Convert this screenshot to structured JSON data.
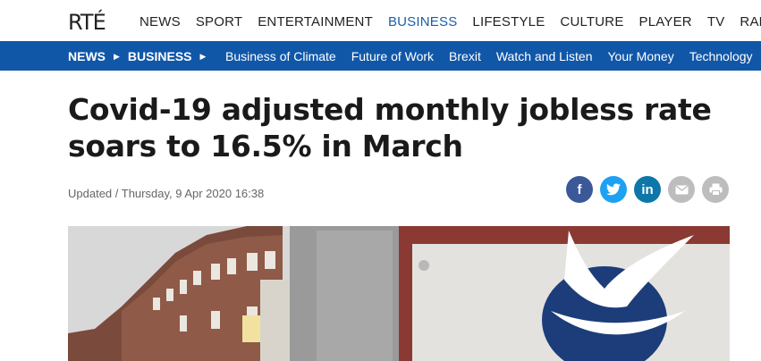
{
  "header": {
    "logo_text": "RTÉ",
    "nav_items": [
      "NEWS",
      "SPORT",
      "ENTERTAINMENT",
      "BUSINESS",
      "LIFESTYLE",
      "CULTURE",
      "PLAYER",
      "TV",
      "RADIO"
    ],
    "active_item": "BUSINESS"
  },
  "subnav": {
    "crumb_1": "NEWS",
    "crumb_2": "BUSINESS",
    "links": [
      "Business of Climate",
      "Future of Work",
      "Brexit",
      "Watch and Listen",
      "Your Money",
      "Technology"
    ]
  },
  "article": {
    "headline": "Covid-19 adjusted monthly jobless rate soars to 16.5% in March",
    "updated": "Updated / Thursday, 9 Apr 2020 16:38"
  },
  "share": {
    "icons": [
      "facebook-icon",
      "twitter-icon",
      "linkedin-icon",
      "email-icon",
      "print-icon"
    ]
  },
  "colors": {
    "brand_blue": "#1157a8",
    "active_nav": "#1a5fa8"
  }
}
